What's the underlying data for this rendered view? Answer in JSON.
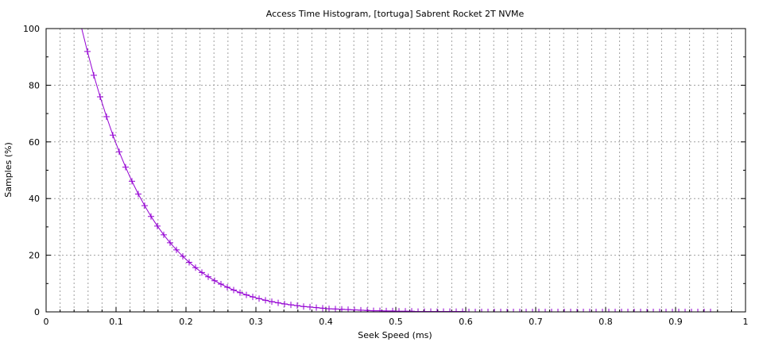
{
  "chart_data": {
    "type": "line",
    "title": "Access Time Histogram, [tortuga] Sabrent Rocket 2T NVMe",
    "xlabel": "Seek Speed (ms)",
    "ylabel": "Samples (%)",
    "xlim": [
      0,
      1
    ],
    "ylim": [
      0,
      100
    ],
    "xticks": [
      "0",
      "0.1",
      "0.2",
      "0.3",
      "0.4",
      "0.5",
      "0.6",
      "0.7",
      "0.8",
      "0.9",
      "1"
    ],
    "yticks": [
      "0",
      "20",
      "40",
      "60",
      "80",
      "100"
    ],
    "grid": true,
    "marker": "plus",
    "color": "#9400d3",
    "x_start": 0.05,
    "x_end": 0.95,
    "values": [
      100.9,
      91.9,
      83.5,
      75.9,
      68.9,
      62.4,
      56.5,
      51.1,
      46.1,
      41.6,
      37.5,
      33.7,
      30.3,
      27.2,
      24.4,
      21.9,
      19.6,
      17.5,
      15.6,
      13.9,
      12.4,
      11.0,
      9.8,
      8.7,
      7.7,
      6.8,
      6.0,
      5.3,
      4.7,
      4.1,
      3.6,
      3.2,
      2.8,
      2.5,
      2.2,
      1.9,
      1.7,
      1.5,
      1.3,
      1.1,
      1.0,
      0.9,
      0.8,
      0.7,
      0.6,
      0.5,
      0.4,
      0.4,
      0.3,
      0.3,
      0.2,
      0.2,
      0.2,
      0.1,
      0.1,
      0.1,
      0.1,
      0.1,
      0.1,
      0.1,
      0.1,
      0,
      0,
      0,
      0,
      0,
      0,
      0,
      0,
      0,
      0,
      0,
      0,
      0,
      0,
      0,
      0,
      0,
      0,
      0,
      0,
      0,
      0,
      0,
      0,
      0,
      0,
      0,
      0,
      0,
      0,
      0,
      0,
      0,
      0,
      0,
      0,
      0,
      0,
      0
    ]
  }
}
